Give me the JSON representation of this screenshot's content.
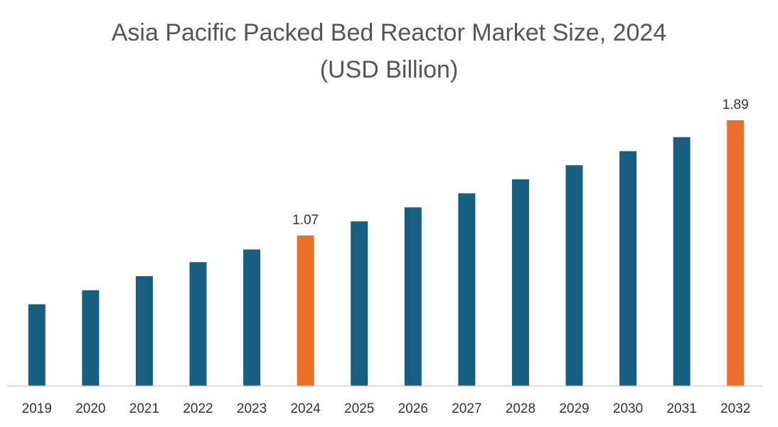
{
  "chart_data": {
    "type": "bar",
    "title": "Asia Pacific Packed Bed Reactor Market Size, 2024",
    "subtitle": "(USD Billion)",
    "categories": [
      "2019",
      "2020",
      "2021",
      "2022",
      "2023",
      "2024",
      "2025",
      "2026",
      "2027",
      "2028",
      "2029",
      "2030",
      "2031",
      "2032"
    ],
    "values": [
      0.58,
      0.68,
      0.78,
      0.88,
      0.97,
      1.07,
      1.17,
      1.27,
      1.37,
      1.47,
      1.57,
      1.67,
      1.77,
      1.89
    ],
    "data_labels": {
      "2024": "1.07",
      "2032": "1.89"
    },
    "highlight_categories": [
      "2024",
      "2032"
    ],
    "colors": {
      "default_bar": "#175f80",
      "highlight_bar": "#e96f2b",
      "axis_line": "#d0d0d0",
      "text": "#333333",
      "title_text": "#555555"
    },
    "ylim": [
      0,
      1.89
    ],
    "xlabel": "",
    "ylabel": "",
    "grid": false,
    "legend": "none"
  }
}
